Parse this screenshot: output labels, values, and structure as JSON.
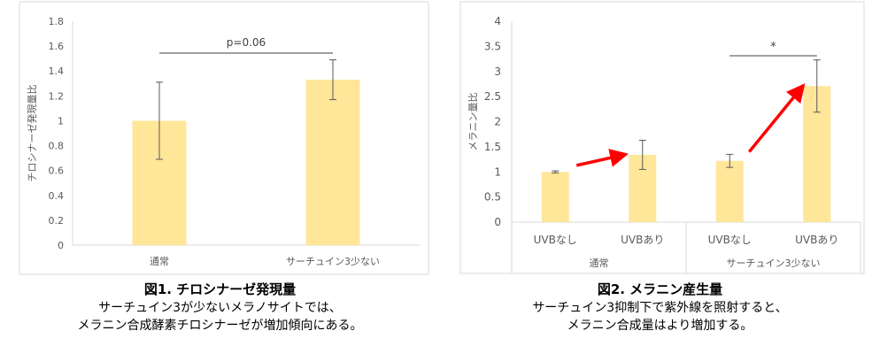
{
  "colors": {
    "bar": "#FFE699",
    "arrow": "#FF0000",
    "axis": "#D9D9D9",
    "text": "#595959"
  },
  "chart_data": [
    {
      "type": "bar",
      "categories": [
        "通常",
        "サーチュイン3少ない"
      ],
      "values": [
        1.0,
        1.33
      ],
      "errors": [
        0.31,
        0.16
      ],
      "ylabel": "チロシナーゼ発現量比",
      "ylim": [
        0,
        1.8
      ],
      "yticks": [
        "0",
        "0.2",
        "0.4",
        "0.6",
        "0.8",
        "1",
        "1.2",
        "1.4",
        "1.6",
        "1.8"
      ],
      "grid": false,
      "significance": {
        "between": [
          0,
          1
        ],
        "label": "p=0.06"
      }
    },
    {
      "type": "bar",
      "categories": [
        "UVBなし",
        "UVBあり",
        "UVBなし",
        "UVBあり"
      ],
      "groups": [
        "通常",
        "サーチュイン3少ない"
      ],
      "values": [
        1.0,
        1.34,
        1.22,
        2.71
      ],
      "errors": [
        0.02,
        0.29,
        0.13,
        0.52
      ],
      "ylabel": "メラニン量比",
      "ylim": [
        0,
        4
      ],
      "yticks": [
        "0",
        "0.5",
        "1",
        "1.5",
        "2",
        "2.5",
        "3",
        "3.5",
        "4"
      ],
      "grid": false,
      "significance": {
        "between": [
          2,
          3
        ],
        "label": "*"
      }
    }
  ],
  "captions": [
    {
      "title": "図1. チロシナーゼ発現量",
      "line1": "サーチュイン3が少ないメラノサイトでは、",
      "line2": "メラニン合成酵素チロシナーゼが増加傾向にある。"
    },
    {
      "title": "図2. メラニン産生量",
      "line1": "サーチュイン3抑制下で紫外線を照射すると、",
      "line2": "メラニン合成量はより増加する。"
    }
  ]
}
